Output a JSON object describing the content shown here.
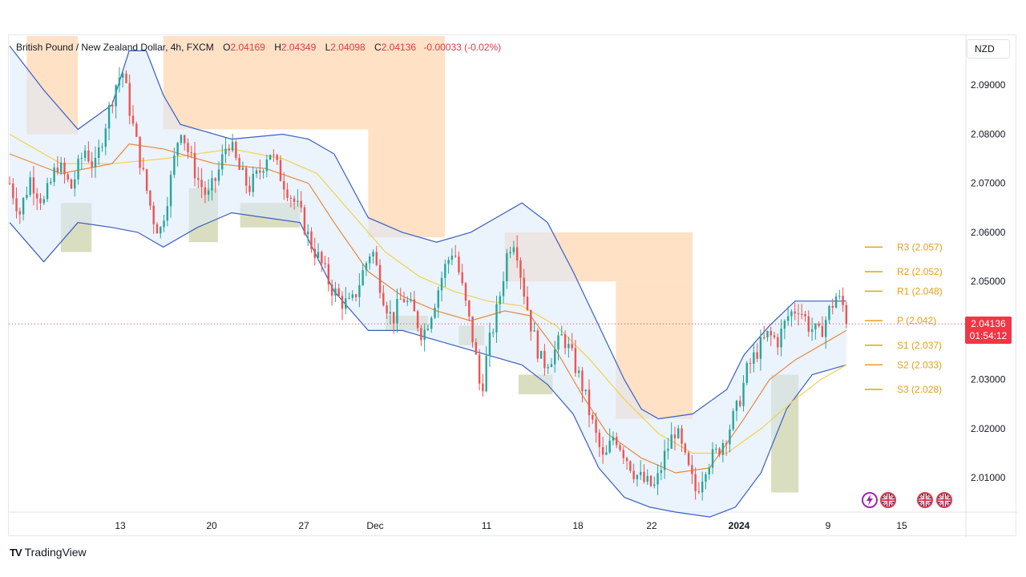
{
  "header": {
    "symbol": "British Pound / New Zealand Dollar, 4h, FXCM",
    "open_label": "O",
    "open": "2.04169",
    "high_label": "H",
    "high": "2.04349",
    "low_label": "L",
    "low": "2.04098",
    "close_label": "C",
    "close": "2.04136",
    "change": "-0.00033 (-0.02%)"
  },
  "currency": "NZD",
  "price_tag": {
    "price": "2.04136",
    "countdown": "01:54:12"
  },
  "branding": {
    "logo": "TV",
    "name": "TradingView"
  },
  "colors": {
    "up": "#26a69a",
    "down": "#ef5350",
    "band": "#3b5fc0",
    "orange_zone": "#ffd9b8",
    "olive_zone": "#d4d8b5",
    "pivot": "#e3a21a"
  },
  "chart_data": {
    "type": "candlestick",
    "ylim": [
      2.003,
      2.1
    ],
    "y_ticks": [
      {
        "value": 2.09,
        "label": "2.09000"
      },
      {
        "value": 2.08,
        "label": "2.08000"
      },
      {
        "value": 2.07,
        "label": "2.07000"
      },
      {
        "value": 2.06,
        "label": "2.06000"
      },
      {
        "value": 2.05,
        "label": "2.05000"
      },
      {
        "value": 2.03,
        "label": "2.03000"
      },
      {
        "value": 2.02,
        "label": "2.02000"
      },
      {
        "value": 2.01,
        "label": "2.01000"
      }
    ],
    "x_ticks": [
      {
        "label": "13",
        "bold": false
      },
      {
        "label": "20",
        "bold": false
      },
      {
        "label": "27",
        "bold": false
      },
      {
        "label": "Dec",
        "bold": false
      },
      {
        "label": "11",
        "bold": false
      },
      {
        "label": "18",
        "bold": false
      },
      {
        "label": "22",
        "bold": false
      },
      {
        "label": "2024",
        "bold": true
      },
      {
        "label": "9",
        "bold": false
      },
      {
        "label": "15",
        "bold": false
      }
    ],
    "pivot_levels": [
      {
        "label": "R3 (2.057)",
        "value": 2.057
      },
      {
        "label": "R2 (2.052)",
        "value": 2.052
      },
      {
        "label": "R1 (2.048)",
        "value": 2.048
      },
      {
        "label": "P (2.042)",
        "value": 2.042
      },
      {
        "label": "S1 (2.037)",
        "value": 2.037
      },
      {
        "label": "S2 (2.033)",
        "value": 2.033
      },
      {
        "label": "S3 (2.028)",
        "value": 2.028
      }
    ],
    "last_price": 2.04136,
    "price_path": [
      [
        0,
        2.07
      ],
      [
        6,
        2.064
      ],
      [
        12,
        2.071
      ],
      [
        20,
        2.066
      ],
      [
        28,
        2.074
      ],
      [
        36,
        2.069
      ],
      [
        44,
        2.077
      ],
      [
        50,
        2.073
      ],
      [
        56,
        2.082
      ],
      [
        62,
        2.09
      ],
      [
        66,
        2.093
      ],
      [
        72,
        2.082
      ],
      [
        78,
        2.072
      ],
      [
        84,
        2.063
      ],
      [
        88,
        2.06
      ],
      [
        94,
        2.07
      ],
      [
        100,
        2.082
      ],
      [
        104,
        2.077
      ],
      [
        110,
        2.071
      ],
      [
        116,
        2.067
      ],
      [
        122,
        2.072
      ],
      [
        128,
        2.079
      ],
      [
        134,
        2.073
      ],
      [
        140,
        2.069
      ],
      [
        146,
        2.072
      ],
      [
        152,
        2.077
      ],
      [
        158,
        2.072
      ],
      [
        164,
        2.068
      ],
      [
        170,
        2.064
      ],
      [
        176,
        2.058
      ],
      [
        182,
        2.054
      ],
      [
        188,
        2.049
      ],
      [
        194,
        2.046
      ],
      [
        200,
        2.045
      ],
      [
        206,
        2.051
      ],
      [
        212,
        2.057
      ],
      [
        218,
        2.048
      ],
      [
        224,
        2.042
      ],
      [
        230,
        2.047
      ],
      [
        236,
        2.044
      ],
      [
        242,
        2.039
      ],
      [
        248,
        2.045
      ],
      [
        254,
        2.052
      ],
      [
        260,
        2.057
      ],
      [
        266,
        2.047
      ],
      [
        272,
        2.037
      ],
      [
        276,
        2.027
      ],
      [
        280,
        2.036
      ],
      [
        286,
        2.045
      ],
      [
        292,
        2.057
      ],
      [
        296,
        2.059
      ],
      [
        300,
        2.05
      ],
      [
        306,
        2.04
      ],
      [
        312,
        2.033
      ],
      [
        318,
        2.035
      ],
      [
        324,
        2.039
      ],
      [
        330,
        2.034
      ],
      [
        336,
        2.028
      ],
      [
        342,
        2.02
      ],
      [
        348,
        2.013
      ],
      [
        354,
        2.019
      ],
      [
        360,
        2.015
      ],
      [
        366,
        2.011
      ],
      [
        372,
        2.009
      ],
      [
        378,
        2.008
      ],
      [
        384,
        2.015
      ],
      [
        390,
        2.02
      ],
      [
        396,
        2.013
      ],
      [
        402,
        2.007
      ],
      [
        408,
        2.013
      ],
      [
        414,
        2.015
      ],
      [
        420,
        2.019
      ],
      [
        426,
        2.024
      ],
      [
        432,
        2.032
      ],
      [
        438,
        2.036
      ],
      [
        444,
        2.039
      ],
      [
        450,
        2.038
      ],
      [
        456,
        2.043
      ],
      [
        462,
        2.045
      ],
      [
        468,
        2.041
      ],
      [
        474,
        2.039
      ],
      [
        480,
        2.044
      ],
      [
        484,
        2.047
      ],
      [
        488,
        2.045
      ],
      [
        490,
        2.0414
      ]
    ],
    "bollinger_upper": [
      [
        0,
        2.098
      ],
      [
        20,
        2.089
      ],
      [
        40,
        2.081
      ],
      [
        60,
        2.086
      ],
      [
        70,
        2.097
      ],
      [
        80,
        2.097
      ],
      [
        90,
        2.088
      ],
      [
        100,
        2.082
      ],
      [
        130,
        2.079
      ],
      [
        160,
        2.08
      ],
      [
        175,
        2.079
      ],
      [
        190,
        2.076
      ],
      [
        210,
        2.063
      ],
      [
        230,
        2.06
      ],
      [
        250,
        2.058
      ],
      [
        270,
        2.06
      ],
      [
        290,
        2.064
      ],
      [
        300,
        2.066
      ],
      [
        315,
        2.062
      ],
      [
        330,
        2.052
      ],
      [
        345,
        2.041
      ],
      [
        360,
        2.03
      ],
      [
        370,
        2.024
      ],
      [
        380,
        2.022
      ],
      [
        400,
        2.023
      ],
      [
        420,
        2.028
      ],
      [
        430,
        2.035
      ],
      [
        445,
        2.041
      ],
      [
        460,
        2.046
      ],
      [
        475,
        2.046
      ],
      [
        490,
        2.046
      ]
    ],
    "bollinger_lower": [
      [
        0,
        2.062
      ],
      [
        20,
        2.054
      ],
      [
        40,
        2.062
      ],
      [
        60,
        2.061
      ],
      [
        75,
        2.06
      ],
      [
        90,
        2.057
      ],
      [
        110,
        2.061
      ],
      [
        130,
        2.064
      ],
      [
        150,
        2.063
      ],
      [
        170,
        2.062
      ],
      [
        190,
        2.048
      ],
      [
        210,
        2.04
      ],
      [
        230,
        2.04
      ],
      [
        250,
        2.038
      ],
      [
        270,
        2.036
      ],
      [
        290,
        2.034
      ],
      [
        300,
        2.033
      ],
      [
        315,
        2.029
      ],
      [
        330,
        2.023
      ],
      [
        345,
        2.012
      ],
      [
        360,
        2.006
      ],
      [
        375,
        2.004
      ],
      [
        390,
        2.003
      ],
      [
        410,
        2.002
      ],
      [
        425,
        2.004
      ],
      [
        440,
        2.011
      ],
      [
        455,
        2.024
      ],
      [
        470,
        2.031
      ],
      [
        480,
        2.032
      ],
      [
        490,
        2.033
      ]
    ],
    "ma_orange": [
      [
        0,
        2.076
      ],
      [
        30,
        2.072
      ],
      [
        60,
        2.074
      ],
      [
        70,
        2.078
      ],
      [
        90,
        2.077
      ],
      [
        120,
        2.074
      ],
      [
        150,
        2.073
      ],
      [
        175,
        2.07
      ],
      [
        190,
        2.062
      ],
      [
        210,
        2.052
      ],
      [
        230,
        2.047
      ],
      [
        250,
        2.044
      ],
      [
        270,
        2.042
      ],
      [
        290,
        2.044
      ],
      [
        305,
        2.043
      ],
      [
        320,
        2.036
      ],
      [
        335,
        2.027
      ],
      [
        350,
        2.019
      ],
      [
        370,
        2.014
      ],
      [
        390,
        2.011
      ],
      [
        410,
        2.012
      ],
      [
        430,
        2.022
      ],
      [
        445,
        2.03
      ],
      [
        460,
        2.034
      ],
      [
        475,
        2.037
      ],
      [
        490,
        2.04
      ]
    ],
    "ma_yellow": [
      [
        0,
        2.08
      ],
      [
        30,
        2.074
      ],
      [
        60,
        2.074
      ],
      [
        90,
        2.075
      ],
      [
        130,
        2.077
      ],
      [
        160,
        2.075
      ],
      [
        180,
        2.072
      ],
      [
        200,
        2.064
      ],
      [
        220,
        2.056
      ],
      [
        240,
        2.051
      ],
      [
        260,
        2.048
      ],
      [
        280,
        2.046
      ],
      [
        300,
        2.045
      ],
      [
        320,
        2.041
      ],
      [
        340,
        2.034
      ],
      [
        360,
        2.026
      ],
      [
        380,
        2.019
      ],
      [
        400,
        2.015
      ],
      [
        420,
        2.015
      ],
      [
        440,
        2.02
      ],
      [
        460,
        2.026
      ],
      [
        475,
        2.03
      ],
      [
        490,
        2.033
      ]
    ],
    "zones": [
      {
        "kind": "supply",
        "x0": 10,
        "x1": 40,
        "top": 2.1,
        "bottom": 2.08
      },
      {
        "kind": "supply",
        "x0": 90,
        "x1": 255,
        "top": 2.1,
        "bottom": 2.081
      },
      {
        "kind": "supply",
        "x0": 210,
        "x1": 255,
        "top": 2.081,
        "bottom": 2.059
      },
      {
        "kind": "supply",
        "x0": 290,
        "x1": 400,
        "top": 2.06,
        "bottom": 2.05
      },
      {
        "kind": "supply",
        "x0": 355,
        "x1": 400,
        "top": 2.05,
        "bottom": 2.022
      },
      {
        "kind": "demand",
        "x0": 30,
        "x1": 48,
        "top": 2.066,
        "bottom": 2.056
      },
      {
        "kind": "demand",
        "x0": 105,
        "x1": 122,
        "top": 2.069,
        "bottom": 2.058
      },
      {
        "kind": "demand",
        "x0": 135,
        "x1": 170,
        "top": 2.066,
        "bottom": 2.061
      },
      {
        "kind": "demand",
        "x0": 220,
        "x1": 245,
        "top": 2.043,
        "bottom": 2.04
      },
      {
        "kind": "demand",
        "x0": 263,
        "x1": 278,
        "top": 2.041,
        "bottom": 2.037
      },
      {
        "kind": "demand",
        "x0": 298,
        "x1": 318,
        "top": 2.031,
        "bottom": 2.027
      },
      {
        "kind": "demand",
        "x0": 446,
        "x1": 462,
        "top": 2.031,
        "bottom": 2.007
      }
    ]
  }
}
